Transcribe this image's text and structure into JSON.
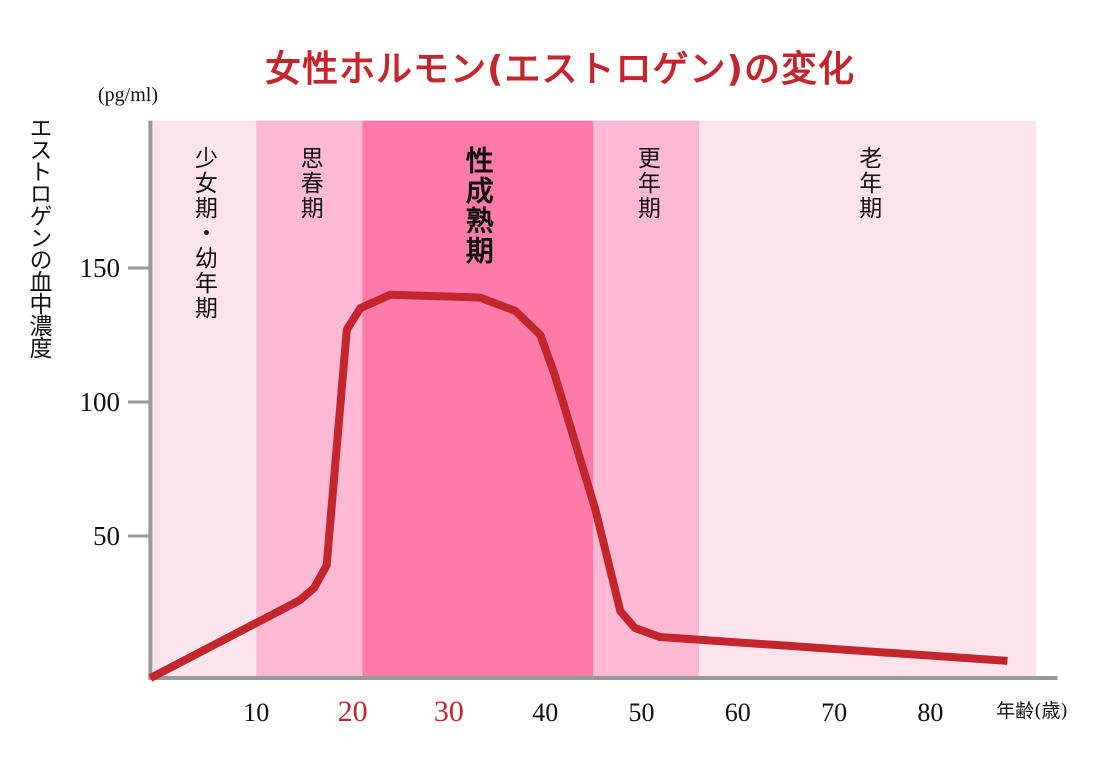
{
  "chart_data": {
    "type": "line",
    "title": "女性ホルモン(エストロゲン)の変化",
    "ylabel": "エストロゲンの血中濃度",
    "yunit": "(pg/ml)",
    "xlabel": "年齢(歳)",
    "xlim": [
      -1,
      96
    ],
    "ylim": [
      -3,
      205
    ],
    "grid": false,
    "y_ticks": [
      50,
      100,
      150
    ],
    "x_ticks": [
      10,
      20,
      30,
      40,
      50,
      60,
      70,
      80
    ],
    "x_ticks_highlighted": [
      20,
      30
    ],
    "colors": {
      "title": "#c4262e",
      "line": "#c4262e",
      "axis": "#999999",
      "highlight_tick": "#c4262e"
    },
    "bands": [
      {
        "label": "少女期・幼年期",
        "from": -1,
        "to": 10,
        "color": "#fde3ec",
        "bold": false
      },
      {
        "label": "思春期",
        "from": 10,
        "to": 21,
        "color": "#fdb8d3",
        "bold": false
      },
      {
        "label": "性成熟期",
        "from": 21,
        "to": 45,
        "color": "#fd7ba8",
        "bold": true
      },
      {
        "label": "更年期",
        "from": 45,
        "to": 56,
        "color": "#fdb8d3",
        "bold": false
      },
      {
        "label": "老年期",
        "from": 56,
        "to": 91,
        "color": "#fde3ec",
        "bold": false
      }
    ],
    "series": [
      {
        "x": [
          -1,
          14.5,
          16,
          17.3,
          19.4,
          20.8,
          23.9,
          33.2,
          36.9,
          39.5,
          41,
          45.2,
          47.8,
          49.3,
          51.9,
          88
        ],
        "y": [
          -3,
          26,
          30.6,
          39,
          127,
          135,
          140,
          139,
          134,
          125,
          110,
          60,
          22,
          15.7,
          12.3,
          3.4
        ]
      }
    ]
  }
}
